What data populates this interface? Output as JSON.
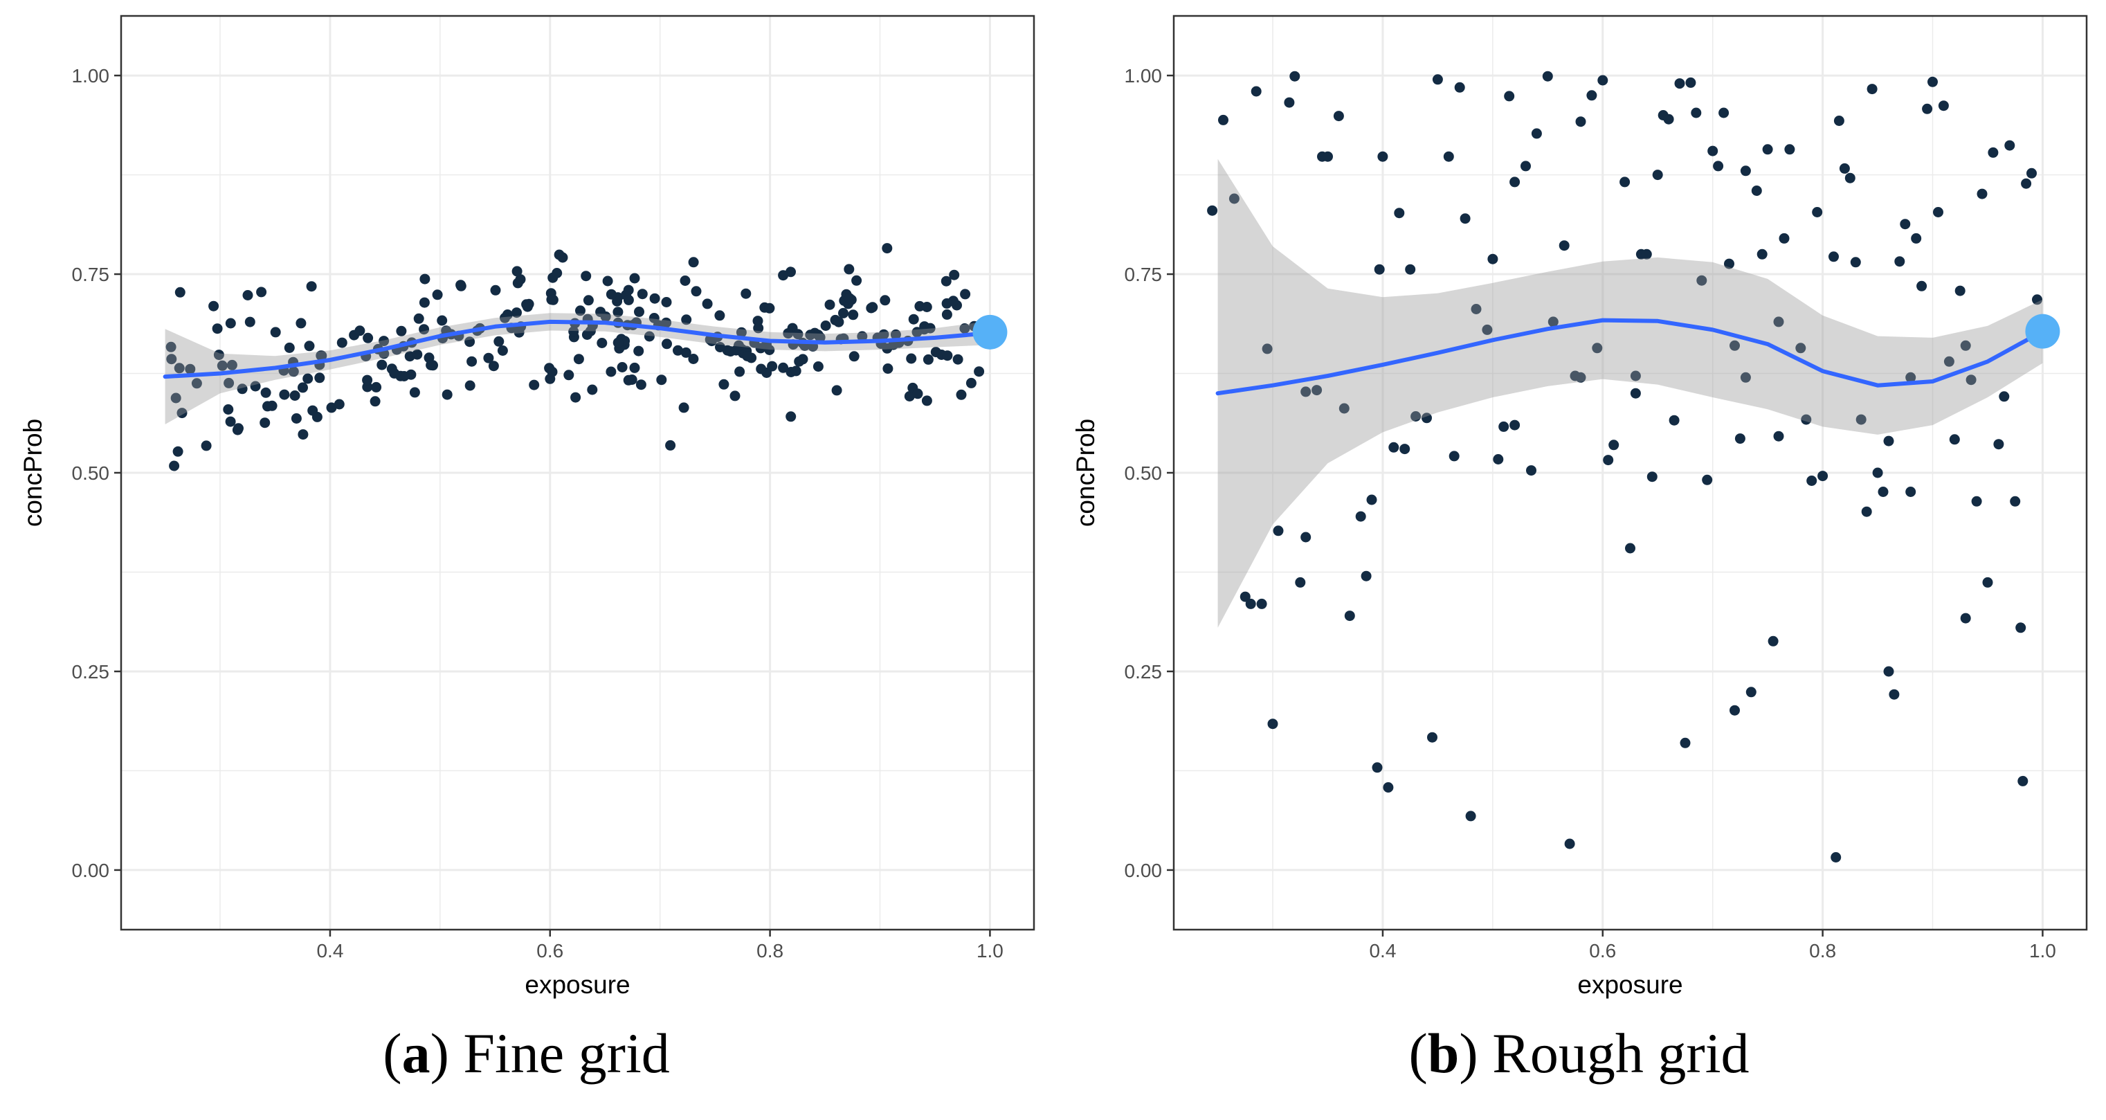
{
  "colors": {
    "point": "#132b43",
    "smooth": "#3366ff",
    "band": "#999999",
    "highlight": "#56b1f7",
    "grid": "#ebebeb"
  },
  "chart_data": [
    {
      "type": "scatter",
      "caption": {
        "letter": "a",
        "text": "Fine grid"
      },
      "xlabel": "exposure",
      "ylabel": "concProb",
      "xlim": [
        0.21,
        1.04
      ],
      "ylim": [
        -0.075,
        1.075
      ],
      "xticks": [
        0.4,
        0.6,
        0.8,
        1.0
      ],
      "xtick_labels": [
        "0.4",
        "0.6",
        "0.8",
        "1.0"
      ],
      "yticks": [
        0.0,
        0.25,
        0.5,
        0.75,
        1.0
      ],
      "ytick_labels": [
        "0.00",
        "0.25",
        "0.50",
        "0.75",
        "1.00"
      ],
      "seed": 7,
      "n_points": 300,
      "noise_sd": 0.045,
      "x_range": [
        0.255,
        0.995
      ],
      "smooth": {
        "x": [
          0.25,
          0.3,
          0.35,
          0.4,
          0.45,
          0.5,
          0.55,
          0.6,
          0.65,
          0.7,
          0.75,
          0.8,
          0.85,
          0.9,
          0.95,
          1.0
        ],
        "y": [
          0.621,
          0.625,
          0.632,
          0.642,
          0.656,
          0.672,
          0.684,
          0.69,
          0.689,
          0.682,
          0.673,
          0.666,
          0.664,
          0.666,
          0.67,
          0.676
        ],
        "se": [
          0.06,
          0.025,
          0.015,
          0.012,
          0.011,
          0.011,
          0.011,
          0.011,
          0.011,
          0.011,
          0.011,
          0.011,
          0.011,
          0.011,
          0.012,
          0.015
        ]
      },
      "highlight": {
        "x": 1.0,
        "y": 0.677
      }
    },
    {
      "type": "scatter",
      "caption": {
        "letter": "b",
        "text": "Rough grid"
      },
      "xlabel": "exposure",
      "ylabel": "concProb",
      "xlim": [
        0.21,
        1.04
      ],
      "ylim": [
        -0.075,
        1.075
      ],
      "xticks": [
        0.4,
        0.6,
        0.8,
        1.0
      ],
      "xtick_labels": [
        "0.4",
        "0.6",
        "0.8",
        "1.0"
      ],
      "yticks": [
        0.0,
        0.25,
        0.5,
        0.75,
        1.0
      ],
      "ytick_labels": [
        "0.00",
        "0.25",
        "0.50",
        "0.75",
        "1.00"
      ],
      "points": [
        [
          0.245,
          0.83
        ],
        [
          0.255,
          0.944
        ],
        [
          0.265,
          0.845
        ],
        [
          0.275,
          0.344
        ],
        [
          0.28,
          0.335
        ],
        [
          0.285,
          0.98
        ],
        [
          0.29,
          0.335
        ],
        [
          0.295,
          0.656
        ],
        [
          0.3,
          0.184
        ],
        [
          0.305,
          0.427
        ],
        [
          0.315,
          0.966
        ],
        [
          0.32,
          0.999
        ],
        [
          0.325,
          0.362
        ],
        [
          0.33,
          0.419
        ],
        [
          0.34,
          0.604
        ],
        [
          0.345,
          0.898
        ],
        [
          0.35,
          0.898
        ],
        [
          0.36,
          0.949
        ],
        [
          0.365,
          0.581
        ],
        [
          0.37,
          0.32
        ],
        [
          0.38,
          0.445
        ],
        [
          0.385,
          0.37
        ],
        [
          0.39,
          0.466
        ],
        [
          0.395,
          0.129
        ],
        [
          0.397,
          0.756
        ],
        [
          0.4,
          0.898
        ],
        [
          0.405,
          0.104
        ],
        [
          0.41,
          0.532
        ],
        [
          0.415,
          0.827
        ],
        [
          0.425,
          0.756
        ],
        [
          0.43,
          0.571
        ],
        [
          0.44,
          0.569
        ],
        [
          0.445,
          0.167
        ],
        [
          0.45,
          0.995
        ],
        [
          0.46,
          0.898
        ],
        [
          0.465,
          0.521
        ],
        [
          0.47,
          0.985
        ],
        [
          0.475,
          0.82
        ],
        [
          0.48,
          0.068
        ],
        [
          0.485,
          0.706
        ],
        [
          0.495,
          0.68
        ],
        [
          0.5,
          0.769
        ],
        [
          0.505,
          0.517
        ],
        [
          0.51,
          0.558
        ],
        [
          0.515,
          0.974
        ],
        [
          0.52,
          0.866
        ],
        [
          0.53,
          0.886
        ],
        [
          0.535,
          0.503
        ],
        [
          0.54,
          0.927
        ],
        [
          0.55,
          0.999
        ],
        [
          0.555,
          0.69
        ],
        [
          0.565,
          0.786
        ],
        [
          0.57,
          0.033
        ],
        [
          0.575,
          0.622
        ],
        [
          0.58,
          0.942
        ],
        [
          0.59,
          0.975
        ],
        [
          0.595,
          0.657
        ],
        [
          0.6,
          0.994
        ],
        [
          0.605,
          0.516
        ],
        [
          0.61,
          0.535
        ],
        [
          0.62,
          0.866
        ],
        [
          0.625,
          0.405
        ],
        [
          0.63,
          0.622
        ],
        [
          0.635,
          0.775
        ],
        [
          0.64,
          0.775
        ],
        [
          0.645,
          0.495
        ],
        [
          0.65,
          0.875
        ],
        [
          0.655,
          0.95
        ],
        [
          0.66,
          0.945
        ],
        [
          0.665,
          0.566
        ],
        [
          0.67,
          0.99
        ],
        [
          0.675,
          0.16
        ],
        [
          0.68,
          0.991
        ],
        [
          0.685,
          0.953
        ],
        [
          0.69,
          0.742
        ],
        [
          0.695,
          0.491
        ],
        [
          0.7,
          0.905
        ],
        [
          0.705,
          0.886
        ],
        [
          0.71,
          0.953
        ],
        [
          0.715,
          0.763
        ],
        [
          0.72,
          0.201
        ],
        [
          0.725,
          0.543
        ],
        [
          0.73,
          0.88
        ],
        [
          0.735,
          0.224
        ],
        [
          0.74,
          0.855
        ],
        [
          0.745,
          0.775
        ],
        [
          0.75,
          0.907
        ],
        [
          0.755,
          0.288
        ],
        [
          0.76,
          0.546
        ],
        [
          0.765,
          0.795
        ],
        [
          0.77,
          0.907
        ],
        [
          0.78,
          0.657
        ],
        [
          0.785,
          0.567
        ],
        [
          0.79,
          0.49
        ],
        [
          0.795,
          0.828
        ],
        [
          0.8,
          0.496
        ],
        [
          0.81,
          0.772
        ],
        [
          0.812,
          0.016
        ],
        [
          0.815,
          0.943
        ],
        [
          0.82,
          0.883
        ],
        [
          0.825,
          0.871
        ],
        [
          0.83,
          0.765
        ],
        [
          0.835,
          0.567
        ],
        [
          0.84,
          0.451
        ],
        [
          0.845,
          0.983
        ],
        [
          0.85,
          0.5
        ],
        [
          0.855,
          0.476
        ],
        [
          0.86,
          0.25
        ],
        [
          0.865,
          0.221
        ],
        [
          0.87,
          0.766
        ],
        [
          0.875,
          0.813
        ],
        [
          0.88,
          0.476
        ],
        [
          0.885,
          0.795
        ],
        [
          0.89,
          0.735
        ],
        [
          0.895,
          0.958
        ],
        [
          0.9,
          0.992
        ],
        [
          0.905,
          0.828
        ],
        [
          0.91,
          0.962
        ],
        [
          0.915,
          0.64
        ],
        [
          0.92,
          0.542
        ],
        [
          0.925,
          0.729
        ],
        [
          0.93,
          0.317
        ],
        [
          0.935,
          0.617
        ],
        [
          0.94,
          0.464
        ],
        [
          0.945,
          0.851
        ],
        [
          0.95,
          0.362
        ],
        [
          0.955,
          0.903
        ],
        [
          0.96,
          0.536
        ],
        [
          0.965,
          0.596
        ],
        [
          0.97,
          0.912
        ],
        [
          0.975,
          0.464
        ],
        [
          0.98,
          0.305
        ],
        [
          0.982,
          0.112
        ],
        [
          0.985,
          0.864
        ],
        [
          0.99,
          0.877
        ],
        [
          0.995,
          0.718
        ],
        [
          0.33,
          0.602
        ],
        [
          0.52,
          0.56
        ],
        [
          0.58,
          0.62
        ],
        [
          0.72,
          0.66
        ],
        [
          0.88,
          0.62
        ],
        [
          0.63,
          0.6
        ],
        [
          0.76,
          0.69
        ],
        [
          0.86,
          0.54
        ],
        [
          0.93,
          0.66
        ],
        [
          0.42,
          0.53
        ],
        [
          0.73,
          0.62
        ]
      ],
      "smooth": {
        "x": [
          0.25,
          0.3,
          0.35,
          0.4,
          0.45,
          0.5,
          0.55,
          0.6,
          0.65,
          0.7,
          0.75,
          0.8,
          0.85,
          0.9,
          0.95,
          1.0
        ],
        "y": [
          0.6,
          0.61,
          0.622,
          0.636,
          0.651,
          0.667,
          0.681,
          0.692,
          0.691,
          0.68,
          0.662,
          0.628,
          0.61,
          0.615,
          0.64,
          0.678
        ],
        "se": [
          0.295,
          0.175,
          0.11,
          0.085,
          0.075,
          0.072,
          0.072,
          0.074,
          0.08,
          0.085,
          0.082,
          0.07,
          0.062,
          0.055,
          0.045,
          0.04
        ]
      },
      "highlight": {
        "x": 1.0,
        "y": 0.678
      }
    }
  ]
}
